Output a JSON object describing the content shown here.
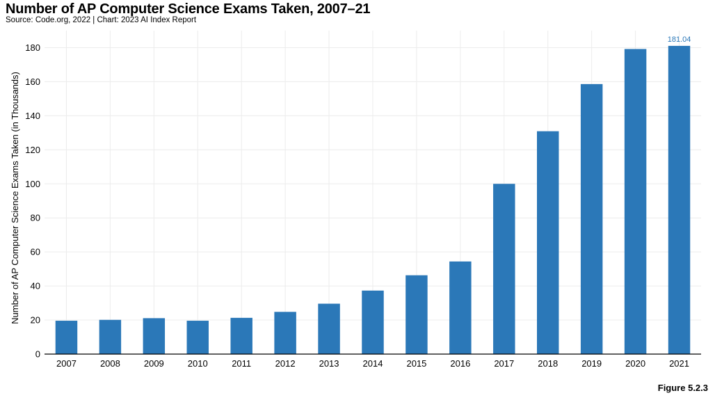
{
  "header": {
    "title": "Number of AP Computer Science Exams Taken, 2007–21",
    "source": "Source: Code.org, 2022 | Chart: 2023 AI Index Report"
  },
  "footer": {
    "figure_label": "Figure 5.2.3"
  },
  "colors": {
    "bar": "#2b78b8",
    "data_label": "#2b78b8",
    "grid": "#ececec",
    "axis": "#000000"
  },
  "chart_data": {
    "type": "bar",
    "title": "Number of AP Computer Science Exams Taken, 2007–21",
    "xlabel": "",
    "ylabel": "Number of AP Computer Science Exams Taken (in Thousands)",
    "categories": [
      "2007",
      "2008",
      "2009",
      "2010",
      "2011",
      "2012",
      "2013",
      "2014",
      "2015",
      "2016",
      "2017",
      "2018",
      "2019",
      "2020",
      "2021"
    ],
    "values": [
      19.6,
      20.1,
      21.1,
      19.6,
      21.3,
      24.8,
      29.6,
      37.3,
      46.3,
      54.4,
      100.0,
      130.9,
      158.6,
      179.2,
      181.04
    ],
    "data_labels": [
      null,
      null,
      null,
      null,
      null,
      null,
      null,
      null,
      null,
      null,
      null,
      null,
      null,
      null,
      "181.04"
    ],
    "ylim": [
      0,
      190
    ],
    "yticks": [
      0,
      20,
      40,
      60,
      80,
      100,
      120,
      140,
      160,
      180
    ],
    "grid": true,
    "legend": "none"
  }
}
